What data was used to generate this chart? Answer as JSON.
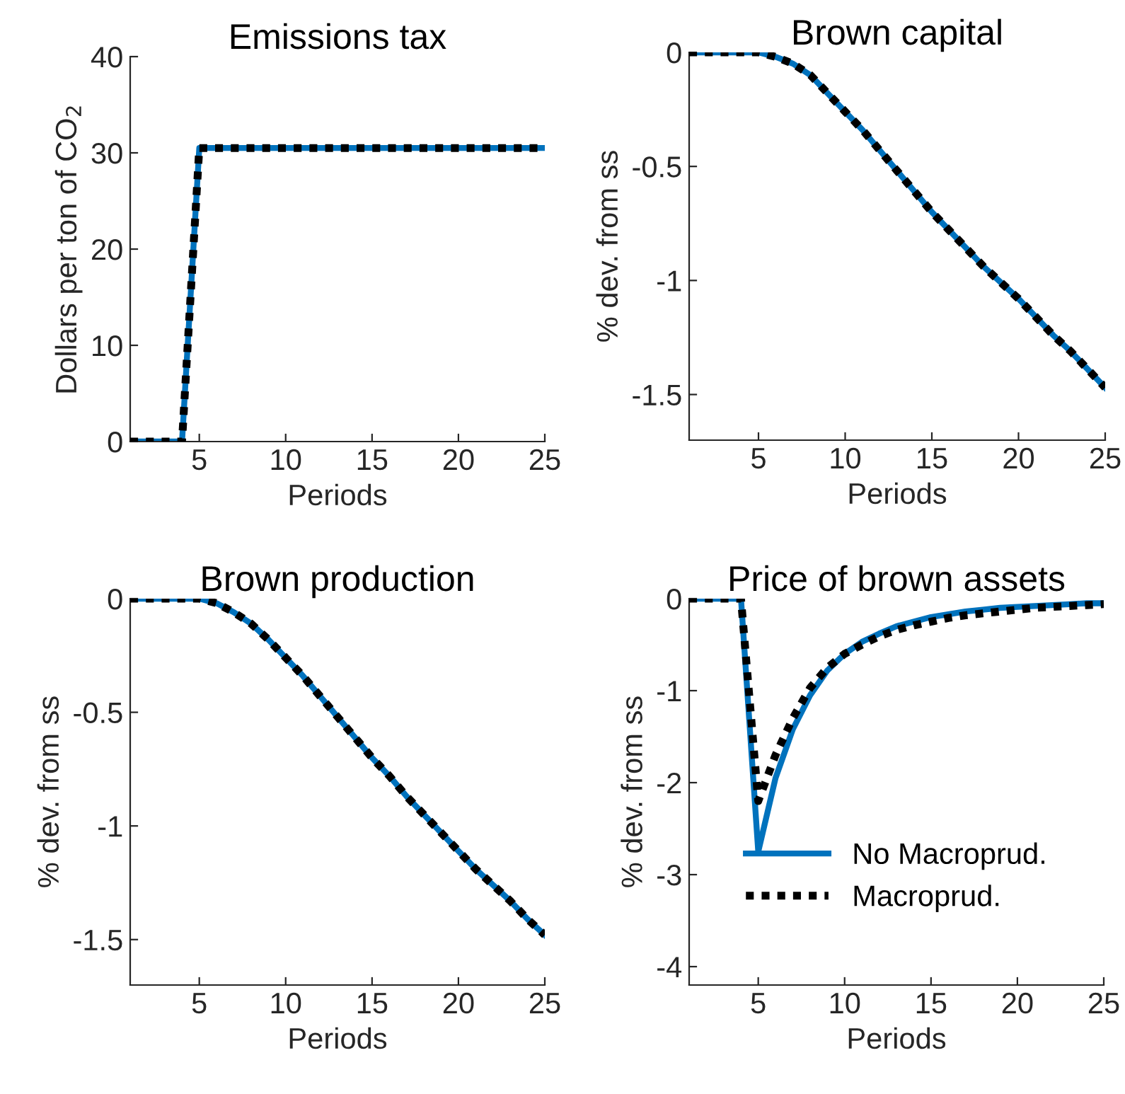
{
  "chart_data": [
    {
      "type": "line",
      "title": "Emissions tax",
      "xlabel": "Periods",
      "ylabel": "Dollars per ton of CO$_{2}$",
      "x": [
        1,
        2,
        3,
        4,
        5,
        6,
        7,
        8,
        9,
        10,
        11,
        12,
        13,
        14,
        15,
        16,
        17,
        18,
        19,
        20,
        21,
        22,
        23,
        24,
        25
      ],
      "xlim": [
        1,
        25
      ],
      "xticks": [
        5,
        10,
        15,
        20,
        25
      ],
      "ylim": [
        0,
        40
      ],
      "yticks": [
        0,
        10,
        20,
        30,
        40
      ],
      "legend": false,
      "grid": false,
      "series": [
        {
          "color": "#0072bd",
          "line_style": "solid",
          "values": [
            0,
            0,
            0,
            0,
            30.5,
            30.5,
            30.5,
            30.5,
            30.5,
            30.5,
            30.5,
            30.5,
            30.5,
            30.5,
            30.5,
            30.5,
            30.5,
            30.5,
            30.5,
            30.5,
            30.5,
            30.5,
            30.5,
            30.5,
            30.5
          ]
        },
        {
          "color": "#000000",
          "line_style": "dotted",
          "values": [
            0,
            0,
            0,
            0,
            30.5,
            30.5,
            30.5,
            30.5,
            30.5,
            30.5,
            30.5,
            30.5,
            30.5,
            30.5,
            30.5,
            30.5,
            30.5,
            30.5,
            30.5,
            30.5,
            30.5,
            30.5,
            30.5,
            30.5,
            30.5
          ]
        }
      ]
    },
    {
      "type": "line",
      "title": "Brown capital",
      "xlabel": "Periods",
      "ylabel": "% dev. from ss",
      "x": [
        1,
        2,
        3,
        4,
        5,
        6,
        7,
        8,
        9,
        10,
        11,
        12,
        13,
        14,
        15,
        16,
        17,
        18,
        19,
        20,
        21,
        22,
        23,
        24,
        25
      ],
      "xlim": [
        1,
        25
      ],
      "xticks": [
        5,
        10,
        15,
        20,
        25
      ],
      "ylim": [
        -1.7,
        0
      ],
      "yticks": [
        -1.5,
        -1,
        -0.5,
        0
      ],
      "legend": false,
      "grid": false,
      "series": [
        {
          "color": "#0072bd",
          "line_style": "solid",
          "values": [
            0,
            0,
            0,
            0,
            0,
            -0.02,
            -0.05,
            -0.1,
            -0.18,
            -0.26,
            -0.34,
            -0.43,
            -0.52,
            -0.61,
            -0.7,
            -0.78,
            -0.86,
            -0.94,
            -1.01,
            -1.08,
            -1.16,
            -1.24,
            -1.31,
            -1.39,
            -1.47
          ]
        },
        {
          "color": "#000000",
          "line_style": "dotted",
          "values": [
            0,
            0,
            0,
            0,
            0,
            -0.02,
            -0.05,
            -0.1,
            -0.18,
            -0.26,
            -0.34,
            -0.43,
            -0.52,
            -0.61,
            -0.7,
            -0.78,
            -0.86,
            -0.94,
            -1.01,
            -1.08,
            -1.16,
            -1.24,
            -1.31,
            -1.39,
            -1.47
          ]
        }
      ]
    },
    {
      "type": "line",
      "title": "Brown production",
      "xlabel": "Periods",
      "ylabel": "% dev. from ss",
      "x": [
        1,
        2,
        3,
        4,
        5,
        6,
        7,
        8,
        9,
        10,
        11,
        12,
        13,
        14,
        15,
        16,
        17,
        18,
        19,
        20,
        21,
        22,
        23,
        24,
        25
      ],
      "xlim": [
        1,
        25
      ],
      "xticks": [
        5,
        10,
        15,
        20,
        25
      ],
      "ylim": [
        -1.7,
        0
      ],
      "yticks": [
        -1.5,
        -1,
        -0.5,
        0
      ],
      "legend": false,
      "grid": false,
      "series": [
        {
          "color": "#0072bd",
          "line_style": "solid",
          "values": [
            0,
            0,
            0,
            0,
            0,
            -0.02,
            -0.06,
            -0.11,
            -0.18,
            -0.26,
            -0.34,
            -0.43,
            -0.52,
            -0.61,
            -0.7,
            -0.78,
            -0.87,
            -0.95,
            -1.03,
            -1.11,
            -1.19,
            -1.26,
            -1.33,
            -1.41,
            -1.48
          ]
        },
        {
          "color": "#000000",
          "line_style": "dotted",
          "values": [
            0,
            0,
            0,
            0,
            0,
            -0.02,
            -0.06,
            -0.11,
            -0.18,
            -0.26,
            -0.34,
            -0.43,
            -0.52,
            -0.61,
            -0.7,
            -0.78,
            -0.87,
            -0.95,
            -1.03,
            -1.11,
            -1.19,
            -1.26,
            -1.33,
            -1.41,
            -1.48
          ]
        }
      ]
    },
    {
      "type": "line",
      "title": "Price of brown assets",
      "xlabel": "Periods",
      "ylabel": "% dev. from ss",
      "x": [
        1,
        2,
        3,
        4,
        5,
        6,
        7,
        8,
        9,
        10,
        11,
        12,
        13,
        14,
        15,
        16,
        17,
        18,
        19,
        20,
        21,
        22,
        23,
        24,
        25
      ],
      "xlim": [
        1,
        25
      ],
      "xticks": [
        5,
        10,
        15,
        20,
        25
      ],
      "ylim": [
        -4.2,
        0
      ],
      "yticks": [
        -4,
        -3,
        -2,
        -1,
        0
      ],
      "legend": "bottom",
      "grid": false,
      "series": [
        {
          "name": "No Macroprud.",
          "color": "#0072bd",
          "line_style": "solid",
          "values": [
            0,
            0,
            0,
            0,
            -2.75,
            -1.95,
            -1.42,
            -1.05,
            -0.78,
            -0.6,
            -0.47,
            -0.38,
            -0.3,
            -0.25,
            -0.2,
            -0.17,
            -0.14,
            -0.12,
            -0.1,
            -0.09,
            -0.08,
            -0.07,
            -0.06,
            -0.05,
            -0.05
          ]
        },
        {
          "name": "Macroprud.",
          "color": "#000000",
          "line_style": "dotted",
          "values": [
            0,
            0,
            0,
            0,
            -2.2,
            -1.7,
            -1.3,
            -0.97,
            -0.75,
            -0.6,
            -0.5,
            -0.41,
            -0.34,
            -0.29,
            -0.25,
            -0.21,
            -0.18,
            -0.16,
            -0.14,
            -0.12,
            -0.1,
            -0.09,
            -0.08,
            -0.07,
            -0.06
          ]
        }
      ]
    }
  ]
}
